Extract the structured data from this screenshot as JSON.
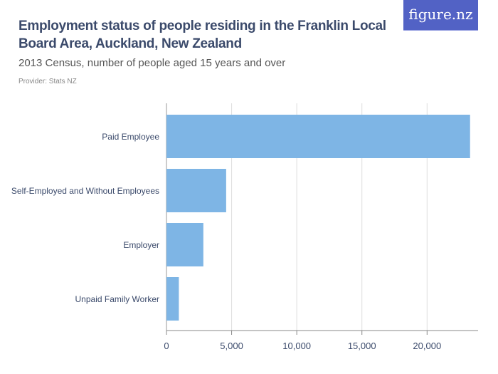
{
  "header": {
    "title": "Employment status of people residing in the Franklin Local Board Area, Auckland, New Zealand",
    "subtitle": "2013 Census, number of people aged 15 years and over",
    "provider": "Provider: Stats NZ",
    "logo": "figure.nz"
  },
  "chart_data": {
    "type": "bar",
    "orientation": "horizontal",
    "categories": [
      "Paid Employee",
      "Self-Employed and Without Employees",
      "Employer",
      "Unpaid Family Worker"
    ],
    "values": [
      23300,
      4580,
      2830,
      950
    ],
    "xlim": [
      0,
      24000
    ],
    "xticks": [
      0,
      5000,
      10000,
      15000,
      20000
    ],
    "xtick_labels": [
      "0",
      "5,000",
      "10,000",
      "15,000",
      "20,000"
    ],
    "grid": true,
    "bar_color": "#7eb5e5"
  }
}
